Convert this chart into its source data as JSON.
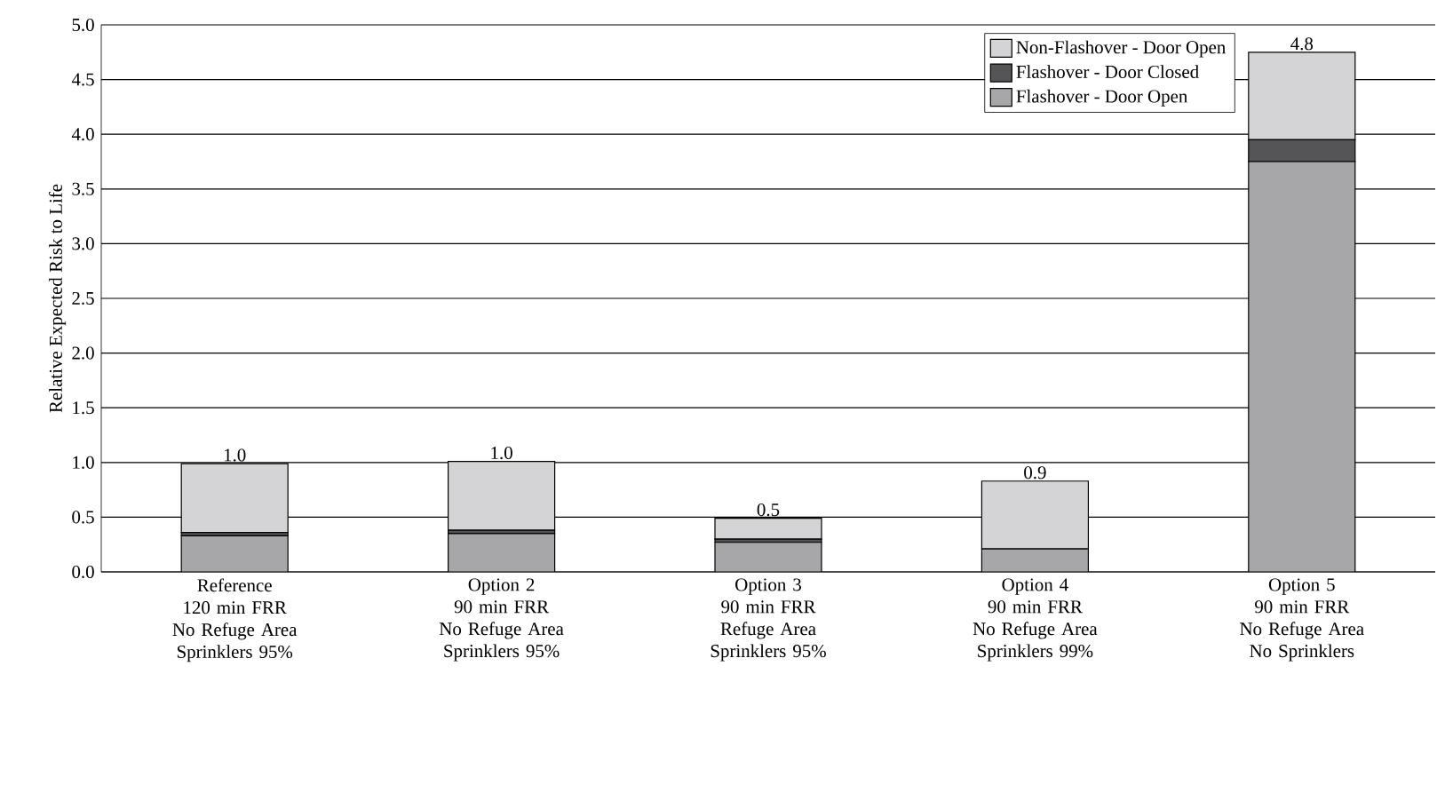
{
  "chart_data": {
    "type": "bar",
    "stacked": true,
    "ylabel": "Relative Expected Risk to Life",
    "categories": [
      "Reference\n120 min FRR\nNo Refuge Area\nSprinklers 95%",
      "Option 2\n90 min FRR\nNo Refuge Area\nSprinklers 95%",
      "Option 3\n90 min FRR\nRefuge Area\nSprinklers 95%",
      "Option 4\n90 min FRR\nNo Refuge Area\nSprinklers 99%",
      "Option 5\n90 min FRR\nNo Refuge Area\nNo Sprinklers"
    ],
    "series": [
      {
        "name": "Flashover - Door Open",
        "color": "#a7a7a9",
        "values": [
          0.33,
          0.35,
          0.27,
          0.21,
          3.75
        ]
      },
      {
        "name": "Flashover - Door Closed",
        "color": "#555557",
        "values": [
          0.03,
          0.03,
          0.03,
          0,
          0.2
        ]
      },
      {
        "name": "Non-Flashover - Door Open",
        "color": "#d4d4d6",
        "values": [
          0.63,
          0.63,
          0.19,
          0.62,
          0.8
        ]
      }
    ],
    "totals": [
      "1.0",
      "1.0",
      "0.5",
      "0.9",
      "4.8"
    ],
    "ylim": [
      0,
      5
    ],
    "yticks": [
      {
        "value": 0,
        "label": "0.0"
      },
      {
        "value": 0.5,
        "label": "0.5"
      },
      {
        "value": 1,
        "label": "1.0"
      },
      {
        "value": 1.5,
        "label": "1.5"
      },
      {
        "value": 2,
        "label": "2.0"
      },
      {
        "value": 2.5,
        "label": "2.5"
      },
      {
        "value": 3,
        "label": "3.0"
      },
      {
        "value": 3.5,
        "label": "3.5"
      },
      {
        "value": 4,
        "label": "4.0"
      },
      {
        "value": 4.5,
        "label": "4.5"
      },
      {
        "value": 5,
        "label": "5.0"
      }
    ],
    "grid": "y",
    "legend": "top right"
  }
}
